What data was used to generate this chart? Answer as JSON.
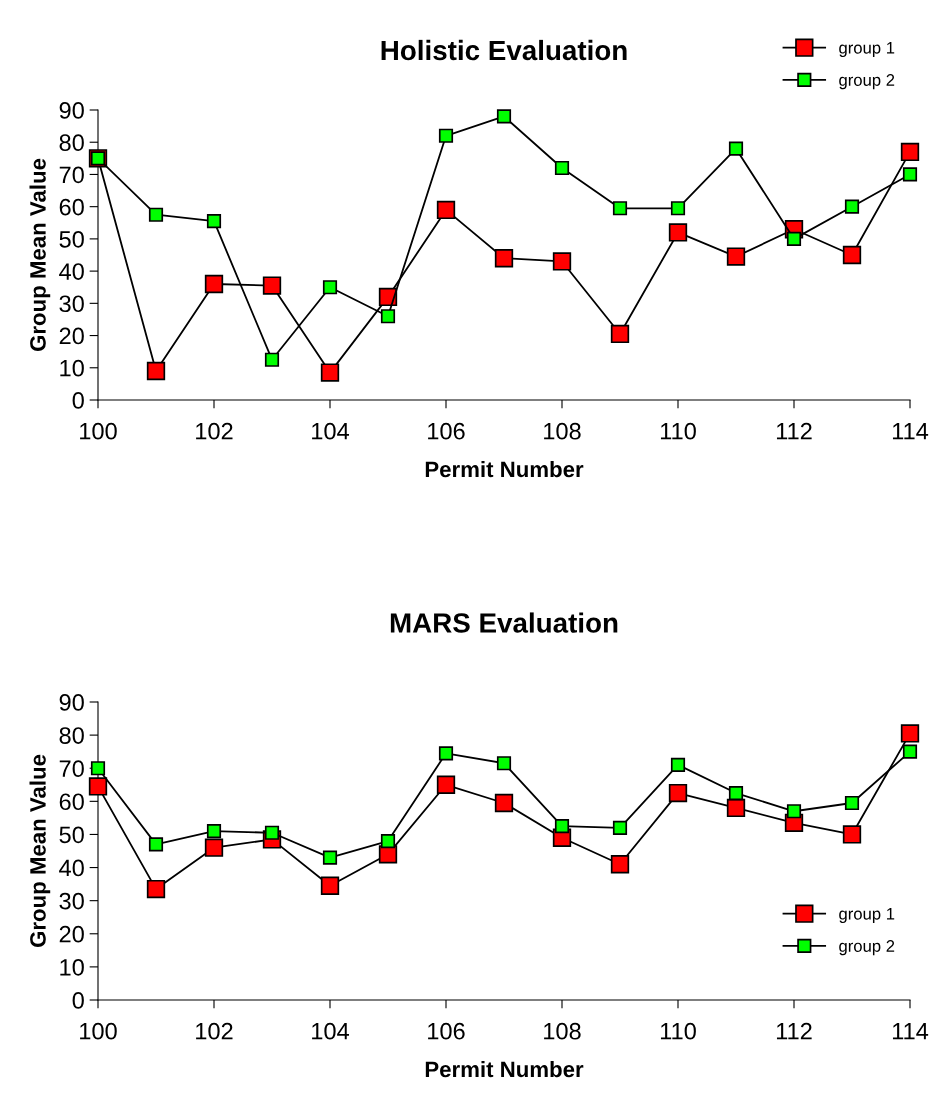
{
  "chart_data": [
    {
      "type": "line",
      "title": "Holistic Evaluation",
      "xlabel": "Permit Number",
      "ylabel": "Group Mean Value",
      "x": [
        100,
        101,
        102,
        103,
        104,
        105,
        106,
        107,
        108,
        109,
        110,
        111,
        112,
        113,
        114
      ],
      "series": [
        {
          "name": "group 1",
          "color": "#ff0000",
          "values": [
            75,
            9,
            36,
            35.5,
            8.5,
            32,
            59,
            44,
            43,
            20.5,
            52,
            44.5,
            53,
            45,
            77
          ]
        },
        {
          "name": "group 2",
          "color": "#00ff00",
          "values": [
            75,
            57.5,
            55.5,
            12.5,
            35,
            26,
            82,
            88,
            72,
            59.5,
            59.5,
            78,
            50,
            60,
            70
          ]
        }
      ],
      "xlim": [
        100,
        114
      ],
      "xticks": [
        100,
        102,
        104,
        106,
        108,
        110,
        112,
        114
      ],
      "ylim": [
        0,
        90
      ],
      "yticks": [
        0,
        10,
        20,
        30,
        40,
        50,
        60,
        70,
        80,
        90
      ],
      "grid": false,
      "legend": "top right",
      "marker": "square",
      "line_style": "solid"
    },
    {
      "type": "line",
      "title": "MARS Evaluation",
      "xlabel": "Permit Number",
      "ylabel": "Group Mean Value",
      "x": [
        100,
        101,
        102,
        103,
        104,
        105,
        106,
        107,
        108,
        109,
        110,
        111,
        112,
        113,
        114
      ],
      "series": [
        {
          "name": "group 1",
          "color": "#ff0000",
          "values": [
            64.5,
            33.5,
            46,
            48.5,
            34.5,
            44,
            65,
            59.5,
            49,
            41,
            62.5,
            58,
            53.5,
            50,
            80.5
          ]
        },
        {
          "name": "group 2",
          "color": "#00ff00",
          "values": [
            70,
            47,
            51,
            50.5,
            43,
            48,
            74.5,
            71.5,
            52.5,
            52,
            71,
            62.5,
            57,
            59.5,
            75
          ]
        }
      ],
      "xlim": [
        100,
        114
      ],
      "xticks": [
        100,
        102,
        104,
        106,
        108,
        110,
        112,
        114
      ],
      "ylim": [
        0,
        90
      ],
      "yticks": [
        0,
        10,
        20,
        30,
        40,
        50,
        60,
        70,
        80,
        90
      ],
      "grid": false,
      "legend": "bottom right",
      "marker": "square",
      "line_style": "solid"
    }
  ]
}
